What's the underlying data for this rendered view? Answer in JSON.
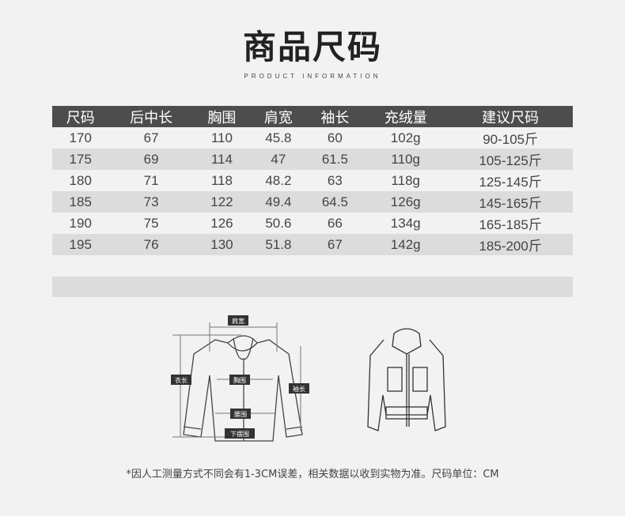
{
  "header": {
    "title": "商品尺码",
    "subtitle": "PRODUCT INFORMATION"
  },
  "table": {
    "columns": [
      "尺码",
      "后中长",
      "胸围",
      "肩宽",
      "袖长",
      "充绒量",
      "建议尺码"
    ],
    "rows": [
      [
        "170",
        "67",
        "110",
        "45.8",
        "60",
        "102g",
        "90-105斤"
      ],
      [
        "175",
        "69",
        "114",
        "47",
        "61.5",
        "110g",
        "105-125斤"
      ],
      [
        "180",
        "71",
        "118",
        "48.2",
        "63",
        "118g",
        "125-145斤"
      ],
      [
        "185",
        "73",
        "122",
        "49.4",
        "64.5",
        "126g",
        "145-165斤"
      ],
      [
        "190",
        "75",
        "126",
        "50.6",
        "66",
        "134g",
        "165-185斤"
      ],
      [
        "195",
        "76",
        "130",
        "51.8",
        "67",
        "142g",
        "185-200斤"
      ]
    ]
  },
  "diagram": {
    "labels": {
      "shoulder": "肩宽",
      "length": "衣长",
      "chest": "胸围",
      "sleeve": "袖长",
      "waist": "腰围",
      "hem": "下摆围"
    }
  },
  "footer": "*因人工测量方式不同会有1-3CM误差，相关数据以收到实物为准。尺码单位：CM"
}
